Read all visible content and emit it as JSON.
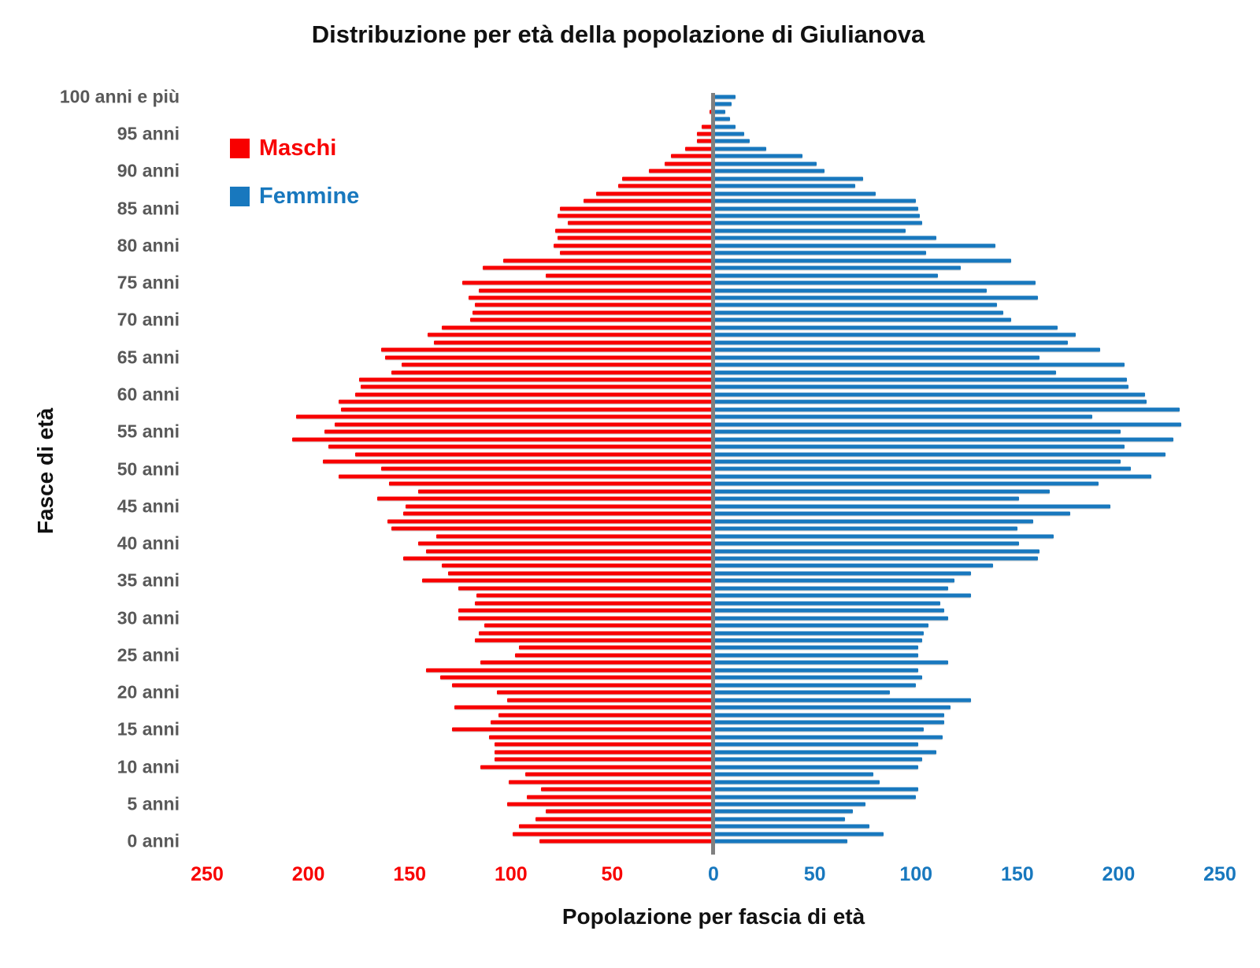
{
  "title": "Distribuzione per età della popolazione di Giulianova",
  "legend": {
    "maschi_label": "Maschi",
    "femmine_label": "Femmine"
  },
  "colors": {
    "maschi": "#F80000",
    "femmine": "#1878BE",
    "axis_label_gray": "#595959",
    "center_line_gray": "#808080"
  },
  "chart_data": {
    "type": "bar",
    "subtype": "population-pyramid",
    "title": "Distribuzione per età della popolazione di Giulianova",
    "xlabel": "Popolazione per fascia di età",
    "ylabel": "Fasce di età",
    "xlim": [
      -250,
      250
    ],
    "grid": false,
    "legend_position": "upper-left",
    "x_ticks": [
      {
        "label": "250",
        "value": -250
      },
      {
        "label": "200",
        "value": -200
      },
      {
        "label": "150",
        "value": -150
      },
      {
        "label": "100",
        "value": -100
      },
      {
        "label": "50",
        "value": -50
      },
      {
        "label": "0",
        "value": 0
      },
      {
        "label": "50",
        "value": 50
      },
      {
        "label": "100",
        "value": 100
      },
      {
        "label": "150",
        "value": 150
      },
      {
        "label": "200",
        "value": 200
      },
      {
        "label": "250",
        "value": 250
      }
    ],
    "y_axis_labels_top_to_bottom": [
      "100 anni e più",
      "95 anni",
      "90 anni",
      "85 anni",
      "80 anni",
      "75 anni",
      "70 anni",
      "65 anni",
      "60 anni",
      "55 anni",
      "50 anni",
      "45 anni",
      "40 anni",
      "35 anni",
      "30 anni",
      "25 anni",
      "20 anni",
      "15 anni",
      "10 anni",
      "5 anni",
      "0 anni"
    ],
    "ages_ascending_0_to_100plus": true,
    "series": [
      {
        "name": "Maschi",
        "color": "#F80000",
        "values": [
          86,
          99,
          96,
          88,
          83,
          102,
          92,
          85,
          101,
          93,
          115,
          108,
          108,
          108,
          111,
          129,
          110,
          106,
          128,
          102,
          107,
          129,
          135,
          142,
          115,
          98,
          96,
          118,
          116,
          113,
          126,
          126,
          118,
          117,
          126,
          144,
          131,
          134,
          153,
          142,
          146,
          137,
          159,
          161,
          153,
          152,
          166,
          146,
          160,
          185,
          164,
          193,
          177,
          190,
          208,
          192,
          187,
          206,
          184,
          185,
          177,
          174,
          175,
          159,
          154,
          162,
          164,
          138,
          141,
          134,
          120,
          119,
          118,
          121,
          116,
          124,
          83,
          114,
          104,
          76,
          79,
          77,
          78,
          72,
          77,
          76,
          64,
          58,
          47,
          45,
          32,
          24,
          21,
          14,
          8,
          8,
          6,
          1,
          2,
          1,
          1
        ]
      },
      {
        "name": "Femmine",
        "color": "#1878BE",
        "values": [
          66,
          84,
          77,
          65,
          69,
          75,
          100,
          101,
          82,
          79,
          101,
          103,
          110,
          101,
          113,
          104,
          114,
          114,
          117,
          127,
          87,
          100,
          103,
          101,
          116,
          101,
          101,
          103,
          104,
          106,
          116,
          114,
          112,
          127,
          116,
          119,
          127,
          138,
          160,
          161,
          151,
          168,
          150,
          158,
          176,
          196,
          151,
          166,
          190,
          216,
          206,
          201,
          223,
          203,
          227,
          201,
          231,
          187,
          230,
          214,
          213,
          205,
          204,
          169,
          203,
          161,
          191,
          175,
          179,
          170,
          147,
          143,
          140,
          160,
          135,
          159,
          111,
          122,
          147,
          105,
          139,
          110,
          95,
          103,
          102,
          101,
          100,
          80,
          70,
          74,
          55,
          51,
          44,
          26,
          18,
          15,
          11,
          8,
          6,
          9,
          11
        ]
      }
    ]
  }
}
